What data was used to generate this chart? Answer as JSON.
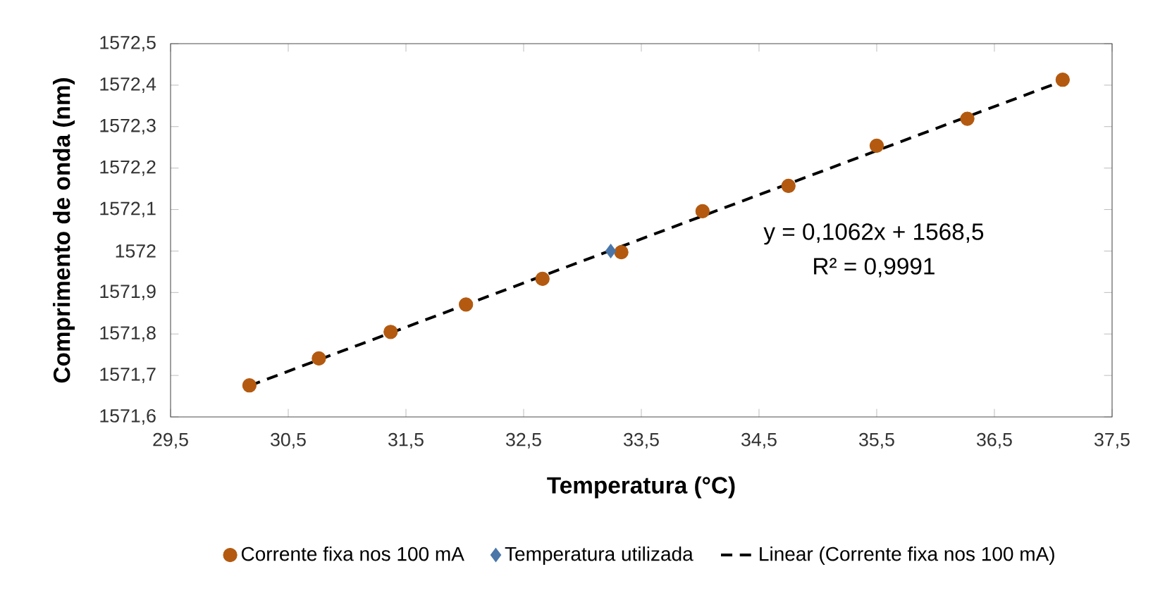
{
  "chart_data": {
    "type": "scatter",
    "xlabel": "Temperatura (°C)",
    "ylabel": "Comprimento de onda (nm)",
    "xlim": [
      29.5,
      37.5
    ],
    "ylim": [
      1571.6,
      1572.5
    ],
    "xticks": [
      {
        "value": 29.5,
        "label": "29,5"
      },
      {
        "value": 30.5,
        "label": "30,5"
      },
      {
        "value": 31.5,
        "label": "31,5"
      },
      {
        "value": 32.5,
        "label": "32,5"
      },
      {
        "value": 33.5,
        "label": "33,5"
      },
      {
        "value": 34.5,
        "label": "34,5"
      },
      {
        "value": 35.5,
        "label": "35,5"
      },
      {
        "value": 36.5,
        "label": "36,5"
      },
      {
        "value": 37.5,
        "label": "37,5"
      }
    ],
    "yticks": [
      {
        "value": 1571.6,
        "label": "1571,6"
      },
      {
        "value": 1571.7,
        "label": "1571,7"
      },
      {
        "value": 1571.8,
        "label": "1571,8"
      },
      {
        "value": 1571.9,
        "label": "1571,9"
      },
      {
        "value": 1572,
        "label": "1572"
      },
      {
        "value": 1572.1,
        "label": "1572,1"
      },
      {
        "value": 1572.2,
        "label": "1572,2"
      },
      {
        "value": 1572.3,
        "label": "1572,3"
      },
      {
        "value": 1572.4,
        "label": "1572,4"
      },
      {
        "value": 1572.5,
        "label": "1572,5"
      }
    ],
    "series": [
      {
        "name": "Corrente fixa nos 100 mA",
        "marker": "circle",
        "color": "#b35a10",
        "x": [
          30.17,
          30.76,
          31.37,
          32.01,
          32.66,
          33.33,
          34.02,
          34.75,
          35.5,
          36.27,
          37.08
        ],
        "values": [
          1571.676,
          1571.741,
          1571.805,
          1571.871,
          1571.933,
          1571.997,
          1572.096,
          1572.157,
          1572.254,
          1572.319,
          1572.413
        ]
      },
      {
        "name": "Temperatura utilizada",
        "marker": "diamond",
        "color": "#4a76a8",
        "x": [
          33.24
        ],
        "values": [
          1572.0
        ]
      },
      {
        "name": "Linear (Corrente fixa nos 100 mA)",
        "type": "line",
        "marker": "none",
        "line_style": "dashed",
        "color": "#000000",
        "x": [
          30.17,
          37.08
        ],
        "values": [
          1571.675,
          1572.41
        ]
      }
    ],
    "annotations": [
      "y = 0,1062x + 1568,5",
      "R² = 0,9991"
    ],
    "legend": "bottom"
  }
}
